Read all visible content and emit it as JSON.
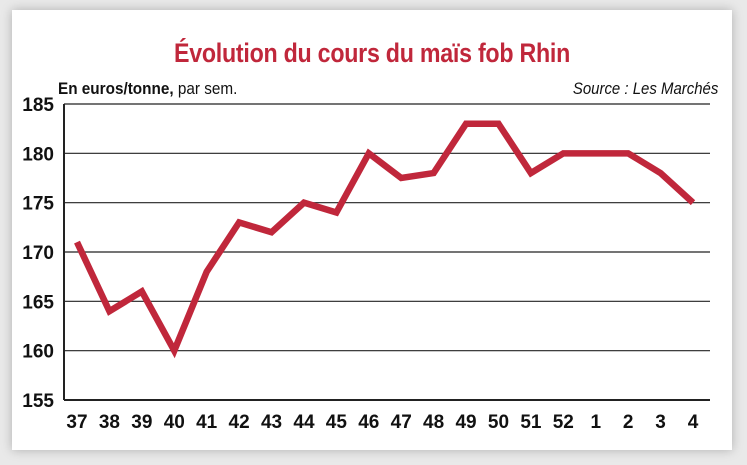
{
  "chart_data": {
    "type": "line",
    "title": "Évolution du cours du maïs fob Rhin",
    "ylabel_bold": "En euros/tonne,",
    "ylabel_rest": " par sem.",
    "source": "Source : Les Marchés",
    "categories": [
      "37",
      "38",
      "39",
      "40",
      "41",
      "42",
      "43",
      "44",
      "45",
      "46",
      "47",
      "48",
      "49",
      "50",
      "51",
      "52",
      "1",
      "2",
      "3",
      "4"
    ],
    "values": [
      171,
      164,
      166,
      160,
      168,
      173,
      172,
      175,
      174,
      180,
      177.5,
      178,
      183,
      183,
      178,
      180,
      180,
      180,
      178,
      175
    ],
    "yticks": [
      155,
      160,
      165,
      170,
      175,
      180,
      185
    ],
    "ylim": [
      155,
      185
    ],
    "grid": true,
    "line_color": "#c0273b"
  }
}
